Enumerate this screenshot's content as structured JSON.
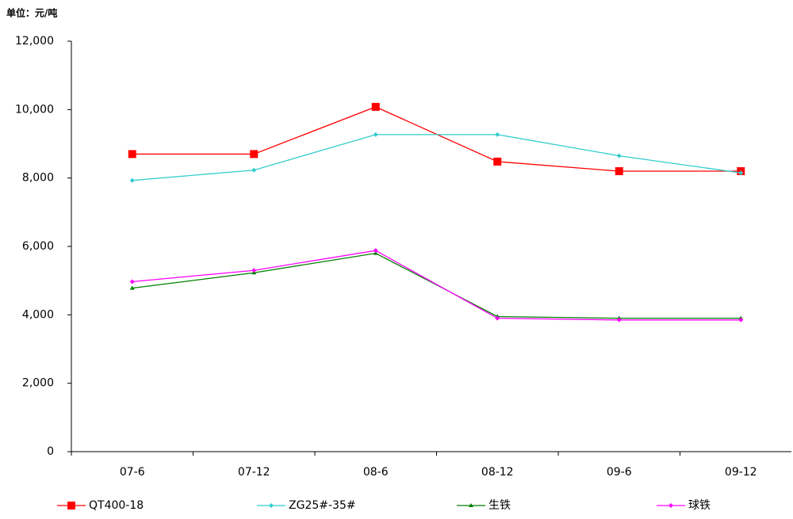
{
  "chart_data": {
    "type": "line",
    "unit_label": "单位：元/吨",
    "categories": [
      "07-6",
      "07-12",
      "08-6",
      "08-12",
      "09-6",
      "09-12"
    ],
    "series": [
      {
        "name": "QT400-18",
        "color": "#ff0000",
        "marker": "square",
        "values": [
          8700,
          8700,
          10080,
          8480,
          8200,
          8200
        ]
      },
      {
        "name": "ZG25#-35#",
        "color": "#33cccc",
        "marker": "diamond",
        "values": [
          7930,
          8230,
          9270,
          9270,
          8650,
          8150
        ]
      },
      {
        "name": "生铁",
        "color": "#008000",
        "marker": "triangle",
        "values": [
          4780,
          5230,
          5800,
          3950,
          3900,
          3900
        ]
      },
      {
        "name": "球铁",
        "color": "#ff00ff",
        "marker": "diamond",
        "values": [
          4970,
          5300,
          5880,
          3900,
          3850,
          3850
        ]
      }
    ],
    "ylim": [
      0,
      12000
    ],
    "yticks": [
      0,
      {
        "value": 2000,
        "label": "2,000"
      },
      {
        "value": 4000,
        "label": "4,000"
      },
      {
        "value": 6000,
        "label": "6,000"
      },
      {
        "value": 8000,
        "label": "8,000"
      },
      {
        "value": 10000,
        "label": "10,000"
      },
      {
        "value": 12000,
        "label": "12,000"
      }
    ],
    "grid": false,
    "legend": "bottom"
  }
}
